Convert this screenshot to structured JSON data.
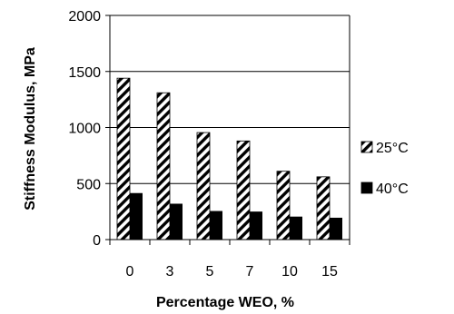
{
  "chart_data": {
    "type": "bar",
    "title": "",
    "xlabel": "Percentage WEO, %",
    "ylabel": "Stiffness Modulus, MPa",
    "ylim": [
      0,
      2000
    ],
    "yticks": [
      "0",
      "500",
      "1000",
      "1500",
      "2000"
    ],
    "y_tick_values": [
      0,
      500,
      1000,
      1500,
      2000
    ],
    "grid": true,
    "legend_position": "right",
    "categories": [
      "0",
      "3",
      "5",
      "7",
      "10",
      "15"
    ],
    "series": [
      {
        "name": "25°C",
        "pattern": "diagonal-hatch",
        "color": "#000000",
        "values": [
          1440,
          1310,
          955,
          880,
          610,
          560
        ]
      },
      {
        "name": "40°C",
        "pattern": "solid",
        "color": "#000000",
        "values": [
          415,
          320,
          255,
          250,
          205,
          195
        ]
      }
    ]
  }
}
